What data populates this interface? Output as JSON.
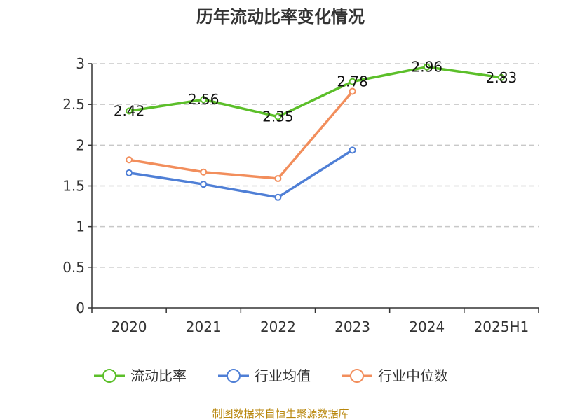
{
  "chart_data": {
    "type": "line",
    "title": "历年流动比率变化情况",
    "categories": [
      "2020",
      "2021",
      "2022",
      "2023",
      "2024",
      "2025H1"
    ],
    "yticks": [
      "0",
      "0.5",
      "1",
      "1.5",
      "2",
      "2.5",
      "3"
    ],
    "ylim": [
      0,
      3
    ],
    "grid": true,
    "legend_position": "bottom",
    "series": [
      {
        "name": "流动比率",
        "color": "#5cbf2a",
        "values": [
          2.42,
          2.56,
          2.35,
          2.78,
          2.96,
          2.83
        ],
        "data_labels": [
          "2.42",
          "2.56",
          "2.35",
          "2.78",
          "2.96",
          "2.83"
        ],
        "show_labels": true
      },
      {
        "name": "行业均值",
        "color": "#4f7fd6",
        "values": [
          1.66,
          1.52,
          1.36,
          1.94,
          null,
          null
        ],
        "show_labels": false
      },
      {
        "name": "行业中位数",
        "color": "#f28e5c",
        "values": [
          1.82,
          1.67,
          1.59,
          2.66,
          null,
          null
        ],
        "show_labels": false
      }
    ]
  },
  "source_text": "制图数据来自恒生聚源数据库"
}
